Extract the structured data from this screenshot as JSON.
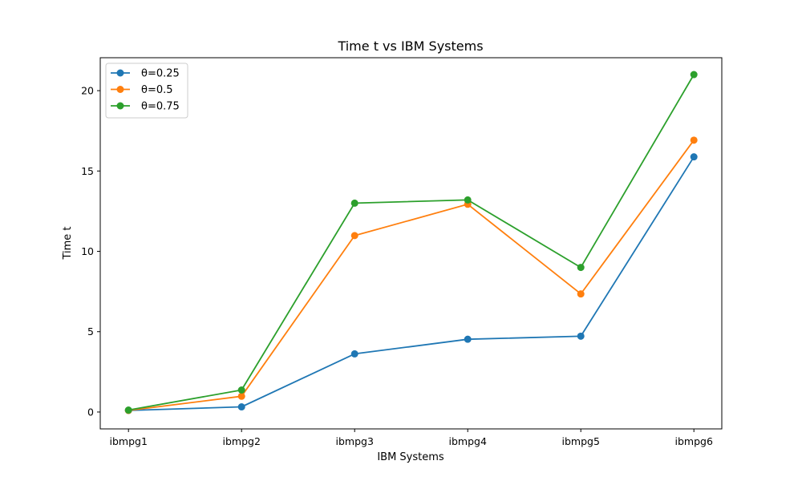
{
  "chart_data": {
    "type": "line",
    "title": "Time t vs IBM Systems",
    "xlabel": "IBM Systems",
    "ylabel": "Time t",
    "categories": [
      "ibmpg1",
      "ibmpg2",
      "ibmpg3",
      "ibmpg4",
      "ibmpg5",
      "ibmpg6"
    ],
    "yticks": [
      "0",
      "5",
      "10",
      "15",
      "20"
    ],
    "ylim": [
      -1.05,
      22.05
    ],
    "grid": false,
    "legend_position": "top-left",
    "series": [
      {
        "name": "θ=0.25",
        "color": "#1f77b4",
        "values": [
          0.1,
          0.32,
          3.62,
          4.53,
          4.72,
          15.88
        ]
      },
      {
        "name": "θ=0.5",
        "color": "#ff7f0e",
        "values": [
          0.1,
          0.98,
          10.98,
          12.93,
          7.35,
          16.92
        ]
      },
      {
        "name": "θ=0.75",
        "color": "#2ca02c",
        "values": [
          0.12,
          1.37,
          13.0,
          13.2,
          9.0,
          21.0
        ]
      }
    ]
  }
}
